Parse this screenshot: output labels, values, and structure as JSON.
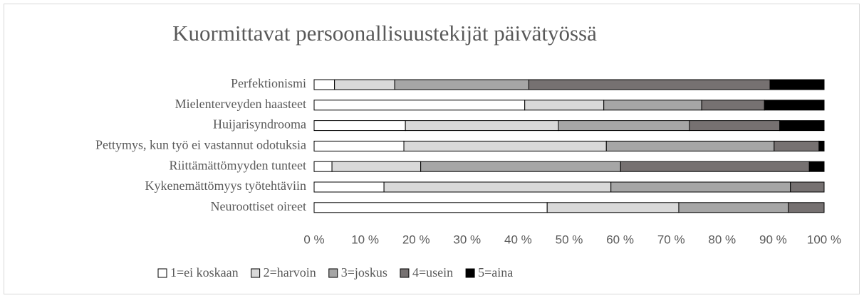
{
  "chart_data": {
    "type": "stacked-barh",
    "title": "Kuormittavat persoonallisuustekijät päivätyössä",
    "categories": [
      "Perfektionismi",
      "Mielenterveyden haasteet",
      "Huijarisyndrooma",
      "Pettymys, kun työ ei vastannut odotuksia",
      "Riittämättömyyden tunteet",
      "Kykenemättömyys työtehtäviin",
      "Neuroottiset oireet"
    ],
    "series": [
      {
        "name": "1=ei koskaan",
        "color": "#ffffff",
        "values": [
          4,
          41.3,
          17.9,
          17.6,
          3.5,
          13.7,
          45.7
        ]
      },
      {
        "name": "2=harvoin",
        "color": "#d9d9d9",
        "values": [
          11.8,
          15.5,
          30,
          39.7,
          17.4,
          44.5,
          25.8
        ]
      },
      {
        "name": "3=joskus",
        "color": "#a6a6a6",
        "values": [
          26.3,
          19.2,
          25.7,
          32.9,
          39.2,
          35.2,
          21.5
        ]
      },
      {
        "name": "4=usein",
        "color": "#767171",
        "values": [
          47.3,
          12.3,
          17.7,
          8.8,
          37,
          6.6,
          7
        ]
      },
      {
        "name": "5=aina",
        "color": "#000000",
        "values": [
          10.6,
          11.7,
          8.7,
          1,
          2.9,
          0,
          0
        ]
      }
    ],
    "xlim": [
      0,
      100
    ],
    "xticks": [
      {
        "value": 0,
        "label": "0 %"
      },
      {
        "value": 10,
        "label": "10 %"
      },
      {
        "value": 20,
        "label": "20 %"
      },
      {
        "value": 30,
        "label": "30 %"
      },
      {
        "value": 40,
        "label": "40 %"
      },
      {
        "value": 50,
        "label": "50 %"
      },
      {
        "value": 60,
        "label": "60 %"
      },
      {
        "value": 70,
        "label": "70 %"
      },
      {
        "value": 80,
        "label": "80 %"
      },
      {
        "value": 90,
        "label": "90 %"
      },
      {
        "value": 100,
        "label": "100 %"
      }
    ],
    "legend": "bottom"
  }
}
